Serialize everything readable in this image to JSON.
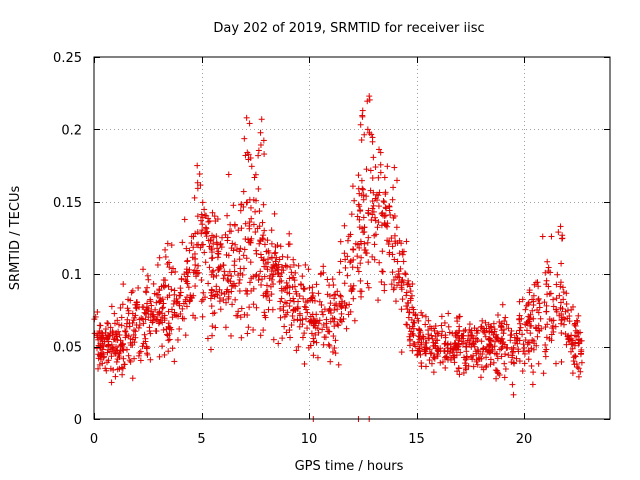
{
  "chart_data": {
    "type": "scatter",
    "title": "Day 202 of 2019, SRMTID for receiver iisc",
    "xlabel": "GPS time / hours",
    "ylabel": "SRMTID / TECUs",
    "xlim": [
      0,
      24
    ],
    "ylim": [
      0,
      0.25
    ],
    "xticks": [
      0,
      5,
      10,
      15,
      20
    ],
    "xtick_labels": [
      "0",
      "5",
      "10",
      "15",
      "20"
    ],
    "yticks": [
      0,
      0.05,
      0.1,
      0.15,
      0.2,
      0.25
    ],
    "ytick_labels": [
      "0",
      "0.05",
      "0.1",
      "0.15",
      "0.2",
      "0.25"
    ],
    "grid": true,
    "marker": "+",
    "series_color": "#e00000",
    "data_span_hours": [
      0,
      22.7
    ],
    "envelope": {
      "x": [
        0,
        1,
        2,
        3,
        4,
        5,
        6,
        7,
        7.5,
        8,
        9,
        10,
        11,
        11.5,
        12,
        12.5,
        13,
        13.5,
        14,
        14.5,
        15,
        16,
        17,
        18,
        19,
        19.5,
        20,
        20.5,
        21,
        21.5,
        22,
        22.7
      ],
      "mean": [
        0.055,
        0.05,
        0.07,
        0.075,
        0.085,
        0.11,
        0.1,
        0.11,
        0.12,
        0.1,
        0.09,
        0.075,
        0.07,
        0.08,
        0.11,
        0.13,
        0.145,
        0.14,
        0.12,
        0.09,
        0.055,
        0.05,
        0.05,
        0.05,
        0.05,
        0.05,
        0.06,
        0.07,
        0.08,
        0.075,
        0.065,
        0.045
      ],
      "spread": [
        0.015,
        0.02,
        0.025,
        0.025,
        0.03,
        0.04,
        0.035,
        0.045,
        0.05,
        0.035,
        0.03,
        0.025,
        0.025,
        0.03,
        0.04,
        0.045,
        0.045,
        0.04,
        0.035,
        0.03,
        0.015,
        0.015,
        0.018,
        0.018,
        0.018,
        0.02,
        0.022,
        0.03,
        0.035,
        0.03,
        0.022,
        0.015
      ]
    },
    "peaks": [
      {
        "x": 4.8,
        "y": 0.175
      },
      {
        "x": 7.1,
        "y": 0.208
      },
      {
        "x": 7.8,
        "y": 0.207
      },
      {
        "x": 12.5,
        "y": 0.213
      },
      {
        "x": 12.8,
        "y": 0.223
      },
      {
        "x": 21.7,
        "y": 0.133
      }
    ],
    "zero_values_x": [
      10.2,
      12.3,
      12.8
    ],
    "point_count": 1700,
    "seed": 202
  }
}
